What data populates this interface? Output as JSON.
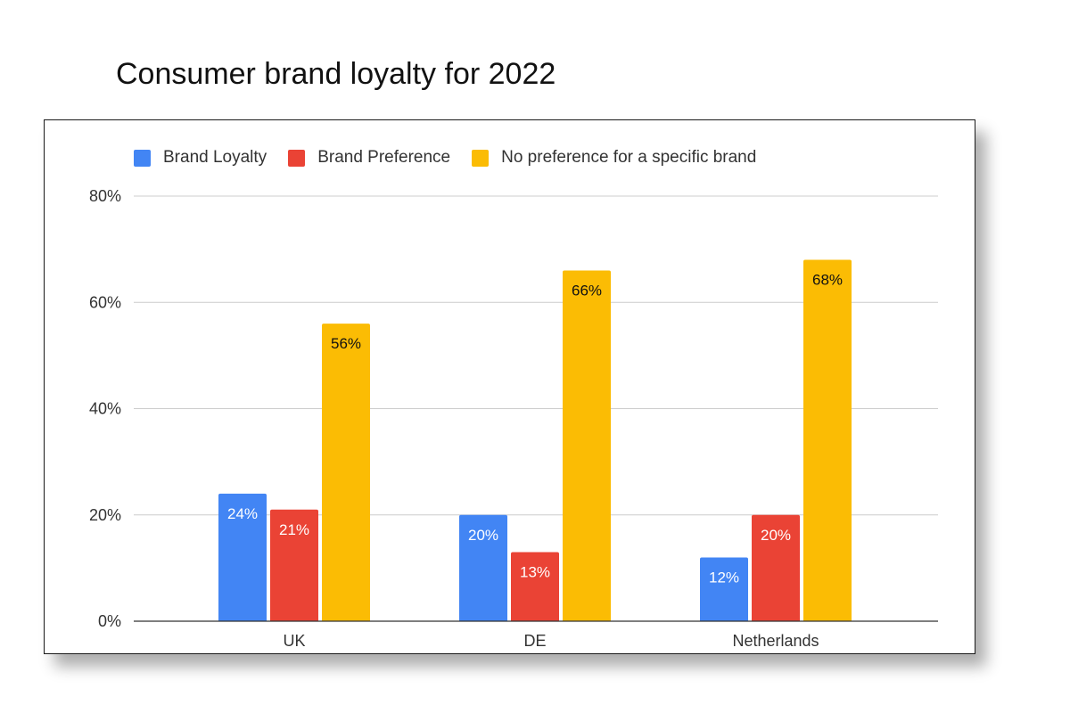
{
  "page": {
    "title": "Consumer brand loyalty for 2022"
  },
  "chart_data": {
    "type": "bar",
    "title": "",
    "xlabel": "",
    "ylabel": "",
    "categories": [
      "UK",
      "DE",
      "Netherlands"
    ],
    "ylim": [
      0,
      80
    ],
    "yticks": [
      "0%",
      "20%",
      "40%",
      "60%",
      "80%"
    ],
    "y_tick_values": [
      0,
      20,
      40,
      60,
      80
    ],
    "grid": true,
    "legend_position": "top",
    "series": [
      {
        "name": "Brand Loyalty",
        "color": "#4285F4",
        "values": [
          24,
          20,
          12
        ],
        "labels": [
          "24%",
          "20%",
          "12%"
        ],
        "label_color": "#ffffff"
      },
      {
        "name": "Brand Preference",
        "color": "#EA4335",
        "values": [
          21,
          13,
          20
        ],
        "labels": [
          "21%",
          "13%",
          "20%"
        ],
        "label_color": "#ffffff"
      },
      {
        "name": "No preference for a specific brand",
        "color": "#FBBC04",
        "values": [
          56,
          66,
          68
        ],
        "labels": [
          "56%",
          "66%",
          "68%"
        ],
        "label_color": "#111111"
      }
    ]
  }
}
